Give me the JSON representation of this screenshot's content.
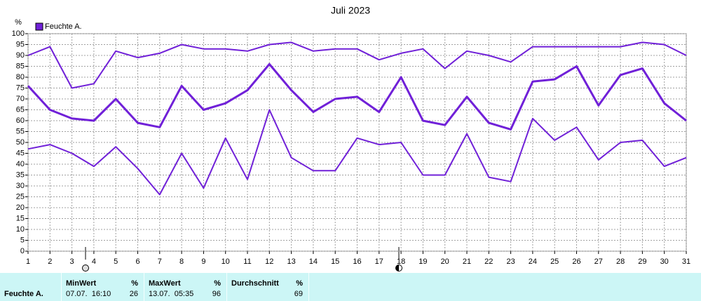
{
  "chart_data": {
    "type": "line",
    "title": "Juli 2023",
    "y_unit": "%",
    "legend": {
      "label": "Feuchte A.",
      "color": "#7020d8"
    },
    "x": [
      1,
      2,
      3,
      4,
      5,
      6,
      7,
      8,
      9,
      10,
      11,
      12,
      13,
      14,
      15,
      16,
      17,
      18,
      19,
      20,
      21,
      22,
      23,
      24,
      25,
      26,
      27,
      28,
      29,
      30,
      31
    ],
    "xlim": [
      1,
      31
    ],
    "xticks": [
      1,
      2,
      3,
      4,
      5,
      6,
      7,
      8,
      9,
      10,
      11,
      12,
      13,
      14,
      15,
      16,
      17,
      18,
      19,
      20,
      21,
      22,
      23,
      24,
      25,
      26,
      27,
      28,
      29,
      30,
      31
    ],
    "ylim": [
      0,
      100
    ],
    "yticks": [
      0,
      5,
      10,
      15,
      20,
      25,
      30,
      35,
      40,
      45,
      50,
      55,
      60,
      65,
      70,
      75,
      80,
      85,
      90,
      95,
      100
    ],
    "grid": true,
    "series": [
      {
        "color": "#7020d8",
        "width": 2,
        "values": [
          90,
          94,
          75,
          77,
          92,
          89,
          91,
          95,
          93,
          93,
          92,
          95,
          96,
          92,
          93,
          93,
          88,
          91,
          93,
          84,
          92,
          90,
          87,
          94,
          94,
          94,
          94,
          94,
          96,
          95,
          90
        ]
      },
      {
        "color": "#7020d8",
        "width": 3,
        "values": [
          76,
          65,
          61,
          60,
          70,
          59,
          57,
          76,
          65,
          68,
          74,
          86,
          74,
          64,
          70,
          71,
          64,
          80,
          60,
          58,
          71,
          59,
          56,
          78,
          79,
          85,
          67,
          81,
          84,
          68,
          60
        ]
      },
      {
        "color": "#7020d8",
        "width": 2,
        "values": [
          47,
          49,
          45,
          39,
          48,
          38,
          26,
          45,
          29,
          52,
          33,
          65,
          43,
          37,
          37,
          52,
          49,
          50,
          35,
          35,
          54,
          34,
          32,
          61,
          51,
          57,
          42,
          50,
          51,
          39,
          43
        ]
      }
    ]
  },
  "stats_table": {
    "row_label": "Feuchte A.",
    "columns": [
      {
        "header": "MinWert",
        "unit": "%",
        "time": "07.07.  16:10",
        "value": 26
      },
      {
        "header": "MaxWert",
        "unit": "%",
        "time": "13.07.  05:35",
        "value": 96
      },
      {
        "header": "Durchschnitt",
        "unit": "%",
        "value": 69
      }
    ]
  }
}
